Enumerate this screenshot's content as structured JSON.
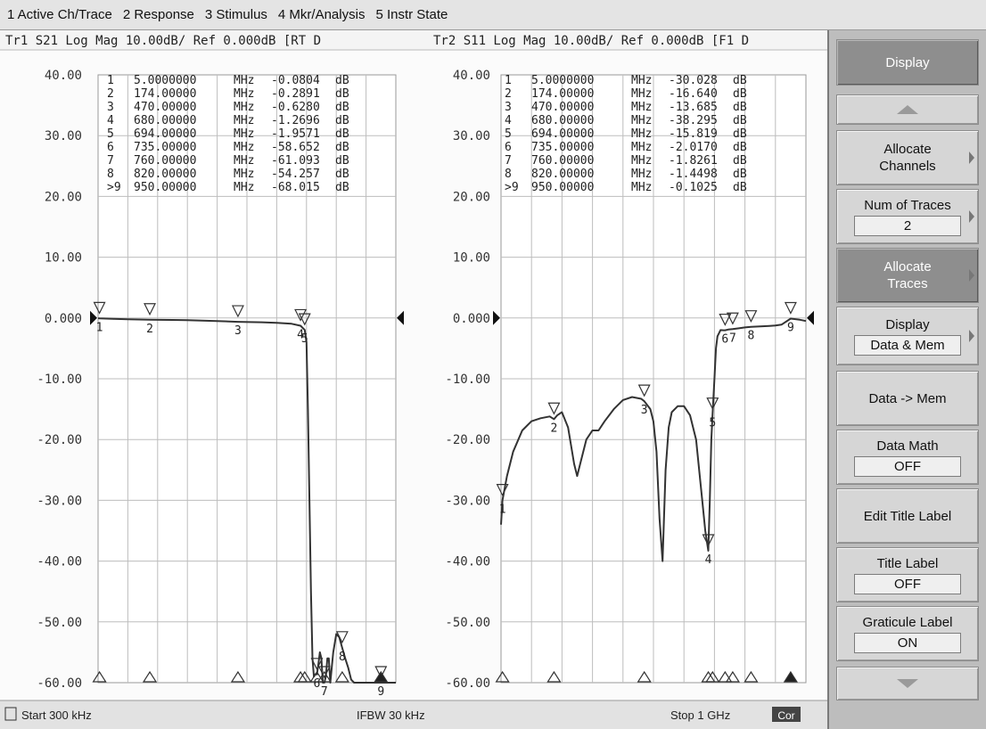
{
  "menu": {
    "items": [
      "1 Active Ch/Trace",
      "2 Response",
      "3 Stimulus",
      "4 Mkr/Analysis",
      "5 Instr State"
    ]
  },
  "softkeys": {
    "title": "Display",
    "allocate_channels": [
      "Allocate",
      "Channels"
    ],
    "num_traces": {
      "label": "Num of Traces",
      "value": "2"
    },
    "allocate_traces": [
      "Allocate",
      "Traces"
    ],
    "display_mode": {
      "label": "Display",
      "value": "Data & Mem"
    },
    "data_to_mem": "Data -> Mem",
    "data_math": {
      "label": "Data Math",
      "value": "OFF"
    },
    "edit_title": "Edit Title Label",
    "title_label": {
      "label": "Title Label",
      "value": "OFF"
    },
    "graticule_label": {
      "label": "Graticule Label",
      "value": "ON"
    }
  },
  "status": {
    "start": "Start 300 kHz",
    "ifbw": "IFBW 30 kHz",
    "stop": "Stop 1 GHz",
    "cor": "Cor"
  },
  "chart_data": [
    {
      "type": "line",
      "trace_header_left": "Tr1 S21 Log Mag 10.00dB/ Ref 0.000dB [RT D",
      "x_unit": "MHz",
      "y_unit": "dB",
      "ylim": [
        -60,
        40
      ],
      "y_ticks": [
        "40.00",
        "30.00",
        "20.00",
        "10.00",
        "0.000",
        "-10.00",
        "-20.00",
        "-30.00",
        "-40.00",
        "-50.00",
        "-60.00"
      ],
      "xlim": [
        0.3,
        1000
      ],
      "grid": true,
      "markers": [
        {
          "id": "1",
          "freq": "5.0000000",
          "freq_mhz": 5,
          "value": "-0.0804",
          "db": -0.0804
        },
        {
          "id": "2",
          "freq": "174.00000",
          "freq_mhz": 174,
          "value": "-0.2891",
          "db": -0.2891
        },
        {
          "id": "3",
          "freq": "470.00000",
          "freq_mhz": 470,
          "value": "-0.6280",
          "db": -0.628
        },
        {
          "id": "4",
          "freq": "680.00000",
          "freq_mhz": 680,
          "value": "-1.2696",
          "db": -1.2696
        },
        {
          "id": "5",
          "freq": "694.00000",
          "freq_mhz": 694,
          "value": "-1.9571",
          "db": -1.9571
        },
        {
          "id": "6",
          "freq": "735.00000",
          "freq_mhz": 735,
          "value": "-58.652",
          "db": -58.652
        },
        {
          "id": "7",
          "freq": "760.00000",
          "freq_mhz": 760,
          "value": "-61.093",
          "db": -61.093
        },
        {
          "id": "8",
          "freq": "820.00000",
          "freq_mhz": 820,
          "value": "-54.257",
          "db": -54.257
        },
        {
          "id": "9",
          "freq": "950.00000",
          "freq_mhz": 950,
          "value": "-68.015",
          "db": -68.015
        }
      ],
      "trace": {
        "x": [
          0.3,
          5,
          50,
          100,
          174,
          250,
          300,
          400,
          470,
          550,
          600,
          650,
          680,
          694,
          700,
          705,
          710,
          715,
          720,
          725,
          730,
          735,
          740,
          745,
          750,
          755,
          760,
          765,
          770,
          775,
          780,
          790,
          800,
          810,
          820,
          830,
          840,
          850,
          860,
          870,
          880,
          890,
          900,
          910,
          920,
          930,
          940,
          950,
          960,
          1000
        ],
        "y": [
          -0.05,
          -0.08,
          -0.15,
          -0.2,
          -0.29,
          -0.32,
          -0.35,
          -0.5,
          -0.63,
          -0.7,
          -0.8,
          -0.95,
          -1.27,
          -1.96,
          -4,
          -15,
          -30,
          -45,
          -56,
          -59,
          -58.6,
          -58.65,
          -57,
          -55,
          -56,
          -61,
          -61.1,
          -59,
          -56,
          -56,
          -60,
          -55,
          -52,
          -52.5,
          -54.3,
          -56,
          -57.5,
          -59.5,
          -61,
          -62,
          -62.5,
          -63,
          -62.5,
          -63,
          -63.5,
          -62,
          -63,
          -68,
          -63.5,
          -63.5
        ]
      }
    },
    {
      "type": "line",
      "trace_header_right": "Tr2 S11 Log Mag 10.00dB/ Ref 0.000dB [F1 D",
      "x_unit": "MHz",
      "y_unit": "dB",
      "ylim": [
        -60,
        40
      ],
      "y_ticks": [
        "40.00",
        "30.00",
        "20.00",
        "10.00",
        "0.000",
        "-10.00",
        "-20.00",
        "-30.00",
        "-40.00",
        "-50.00",
        "-60.00"
      ],
      "xlim": [
        0.3,
        1000
      ],
      "grid": true,
      "markers": [
        {
          "id": "1",
          "freq": "5.0000000",
          "freq_mhz": 5,
          "value": "-30.028",
          "db": -30.028
        },
        {
          "id": "2",
          "freq": "174.00000",
          "freq_mhz": 174,
          "value": "-16.640",
          "db": -16.64
        },
        {
          "id": "3",
          "freq": "470.00000",
          "freq_mhz": 470,
          "value": "-13.685",
          "db": -13.685
        },
        {
          "id": "4",
          "freq": "680.00000",
          "freq_mhz": 680,
          "value": "-38.295",
          "db": -38.295
        },
        {
          "id": "5",
          "freq": "694.00000",
          "freq_mhz": 694,
          "value": "-15.819",
          "db": -15.819
        },
        {
          "id": "6",
          "freq": "735.00000",
          "freq_mhz": 735,
          "value": "-2.0170",
          "db": -2.017
        },
        {
          "id": "7",
          "freq": "760.00000",
          "freq_mhz": 760,
          "value": "-1.8261",
          "db": -1.8261
        },
        {
          "id": "8",
          "freq": "820.00000",
          "freq_mhz": 820,
          "value": "-1.4498",
          "db": -1.4498
        },
        {
          "id": "9",
          "freq": "950.00000",
          "freq_mhz": 950,
          "value": "-0.1025",
          "db": -0.1025
        }
      ],
      "trace": {
        "x": [
          0.3,
          5,
          20,
          40,
          70,
          100,
          130,
          160,
          174,
          185,
          200,
          220,
          240,
          250,
          260,
          280,
          300,
          320,
          340,
          370,
          400,
          430,
          460,
          470,
          490,
          500,
          510,
          520,
          530,
          540,
          550,
          560,
          580,
          600,
          620,
          640,
          660,
          670,
          680,
          685,
          690,
          694,
          700,
          705,
          710,
          720,
          730,
          735,
          745,
          760,
          780,
          800,
          820,
          850,
          880,
          900,
          920,
          950,
          980,
          1000
        ],
        "y": [
          -34,
          -30,
          -26,
          -22,
          -18.5,
          -17,
          -16.5,
          -16.2,
          -16.64,
          -16,
          -15.5,
          -18,
          -24,
          -26,
          -24,
          -20,
          -18.5,
          -18.5,
          -17,
          -15,
          -13.5,
          -13,
          -13.3,
          -13.7,
          -15,
          -17,
          -22,
          -33,
          -40,
          -25,
          -18,
          -15.5,
          -14.5,
          -14.5,
          -16,
          -20,
          -30,
          -35,
          -38.3,
          -30,
          -20,
          -15.8,
          -10,
          -5,
          -3,
          -2,
          -2.02,
          -2.02,
          -1.9,
          -1.83,
          -1.7,
          -1.55,
          -1.45,
          -1.4,
          -1.3,
          -1.25,
          -1.1,
          -0.1,
          -0.3,
          -0.5
        ]
      }
    }
  ]
}
